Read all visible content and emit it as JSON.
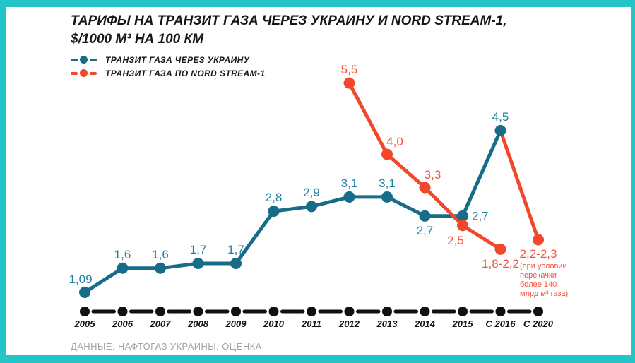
{
  "title": {
    "line1": "ТАРИФЫ НА ТРАНЗИТ ГАЗА ЧЕРЕЗ УКРАИНУ И NORD STREAM-1,",
    "line2": "$/1000 М³ НА 100 КМ"
  },
  "source": "ДАННЫЕ: НАФТОГАЗ УКРАИНЫ, ОЦЕНКА",
  "colors": {
    "ukraine": "#176c87",
    "ukraine_label": "#1f80a4",
    "nord_stream": "#f2472b",
    "nord_label": "#f4503a",
    "axis": "#111114",
    "border": "#23c5c7",
    "source_text": "#a3a3a8"
  },
  "chart_data": {
    "type": "line",
    "title": "ТАРИФЫ НА ТРАНЗИТ ГАЗА ЧЕРЕЗ УКРАИНУ И NORD STREAM-1, $/1000 М³ НА 100 КМ",
    "xlabel": "",
    "ylabel": "$/1000 м³ на 100 км",
    "grid": false,
    "legend_position": "top-left",
    "categories": [
      "2005",
      "2006",
      "2007",
      "2008",
      "2009",
      "2010",
      "2011",
      "2012",
      "2013",
      "2014",
      "2015",
      "С 2016",
      "С 2020"
    ],
    "series": [
      {
        "id": "ukraine",
        "name": "ТРАНЗИТ ГАЗА ЧЕРЕЗ УКРАИНУ",
        "color_key": "ukraine",
        "label_color_key": "ukraine_label",
        "points": [
          {
            "category": "2005",
            "value": 1.09,
            "label": "1,09",
            "label_pos": "above-left"
          },
          {
            "category": "2006",
            "value": 1.6,
            "label": "1,6",
            "label_pos": "above"
          },
          {
            "category": "2007",
            "value": 1.6,
            "label": "1,6",
            "label_pos": "above"
          },
          {
            "category": "2008",
            "value": 1.7,
            "label": "1,7",
            "label_pos": "above"
          },
          {
            "category": "2009",
            "value": 1.7,
            "label": "1,7",
            "label_pos": "above"
          },
          {
            "category": "2010",
            "value": 2.8,
            "label": "2,8",
            "label_pos": "above"
          },
          {
            "category": "2011",
            "value": 2.9,
            "label": "2,9",
            "label_pos": "above"
          },
          {
            "category": "2012",
            "value": 3.1,
            "label": "3,1",
            "label_pos": "above"
          },
          {
            "category": "2013",
            "value": 3.1,
            "label": "3,1",
            "label_pos": "above"
          },
          {
            "category": "2014",
            "value": 2.7,
            "label": "2,7",
            "label_pos": "below"
          },
          {
            "category": "2015",
            "value": 2.7,
            "label": "2,7",
            "label_pos": "right"
          },
          {
            "category": "С 2016",
            "value": 4.5,
            "label": "4,5",
            "label_pos": "above"
          }
        ]
      },
      {
        "id": "nord-stream",
        "name": "ТРАНЗИТ ГАЗА ПО NORD STREAM-1",
        "color_key": "nord_stream",
        "label_color_key": "nord_label",
        "points": [
          {
            "category": "2012",
            "value": 5.5,
            "label": "5,5",
            "label_pos": "above"
          },
          {
            "category": "2013",
            "value": 4.0,
            "label": "4,0",
            "label_pos": "above-right"
          },
          {
            "category": "2014",
            "value": 3.3,
            "label": "3,3",
            "label_pos": "above-right"
          },
          {
            "category": "2015",
            "value": 2.5,
            "label": "2,5",
            "label_pos": "below-left"
          },
          {
            "category": "С 2016",
            "value": 2.0,
            "label": "1,8-2,2",
            "label_pos": "below"
          }
        ]
      }
    ],
    "forecast_segment": {
      "from_category": "С 2016",
      "from_value": 4.5,
      "to_category": "С 2020",
      "to_value": 2.2,
      "label": "2,2-2,3",
      "note": "(при условии\nперекачки\nболее 140\nмлрд м³ газа)",
      "color_key": "nord_stream",
      "label_color_key": "nord_label"
    }
  }
}
